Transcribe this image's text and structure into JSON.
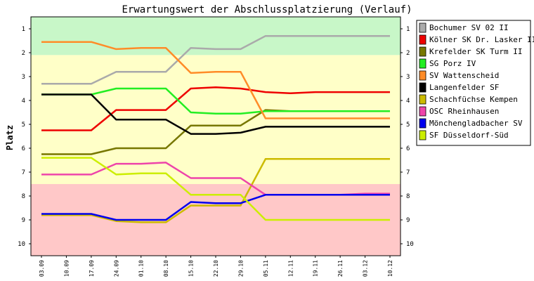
{
  "chart_data": {
    "type": "line",
    "title": "Erwartungswert der Abschlussplatzierung (Verlauf)",
    "xlabel": "",
    "ylabel": "Platz",
    "ylim": [
      10.5,
      0.5
    ],
    "y_ticks": [
      1,
      2,
      3,
      4,
      5,
      6,
      7,
      8,
      9,
      10
    ],
    "categories": [
      "03.09",
      "10.09",
      "17.09",
      "24.09",
      "01.10",
      "08.10",
      "15.10",
      "22.10",
      "29.10",
      "05.11",
      "12.11",
      "19.11",
      "26.11",
      "03.12",
      "10.12"
    ],
    "zones": [
      {
        "from": 0.5,
        "to": 2.1,
        "color": "#c8f7c8"
      },
      {
        "from": 2.1,
        "to": 7.5,
        "color": "#ffffc8"
      },
      {
        "from": 7.5,
        "to": 10.5,
        "color": "#ffc8c8"
      }
    ],
    "legend_position": "right",
    "series": [
      {
        "name": "Bochumer SV 02 II",
        "color": "#aaaaaa",
        "values": [
          3.3,
          3.3,
          3.3,
          2.8,
          2.8,
          2.8,
          1.8,
          1.85,
          1.85,
          1.3,
          1.3,
          1.3,
          1.3,
          1.3,
          1.3
        ]
      },
      {
        "name": "Kölner SK Dr. Lasker II",
        "color": "#ee0000",
        "values": [
          5.25,
          5.25,
          5.25,
          4.4,
          4.4,
          4.4,
          3.5,
          3.45,
          3.5,
          3.65,
          3.7,
          3.65,
          3.65,
          3.65,
          3.65
        ]
      },
      {
        "name": "Krefelder SK Turm II",
        "color": "#777700",
        "values": [
          6.25,
          6.25,
          6.25,
          6.0,
          6.0,
          6.0,
          5.05,
          5.05,
          5.05,
          4.4,
          4.45,
          4.45,
          4.45,
          4.45,
          4.45
        ]
      },
      {
        "name": "SG Porz IV",
        "color": "#22ee22",
        "values": [
          3.75,
          3.75,
          3.75,
          3.5,
          3.5,
          3.5,
          4.5,
          4.55,
          4.55,
          4.45,
          4.45,
          4.45,
          4.45,
          4.45,
          4.45
        ]
      },
      {
        "name": "SV Wattenscheid",
        "color": "#ff8c28",
        "values": [
          1.55,
          1.55,
          1.55,
          1.85,
          1.8,
          1.8,
          2.85,
          2.8,
          2.8,
          4.75,
          4.75,
          4.75,
          4.75,
          4.75,
          4.75
        ]
      },
      {
        "name": "Langenfelder SF",
        "color": "#000000",
        "values": [
          3.75,
          3.75,
          3.75,
          4.8,
          4.8,
          4.8,
          5.4,
          5.4,
          5.35,
          5.1,
          5.1,
          5.1,
          5.1,
          5.1,
          5.1
        ]
      },
      {
        "name": "Schachfüchse Kempen",
        "color": "#ccbb00",
        "values": [
          8.8,
          8.8,
          8.8,
          9.05,
          9.1,
          9.1,
          8.4,
          8.4,
          8.4,
          6.45,
          6.45,
          6.45,
          6.45,
          6.45,
          6.45
        ]
      },
      {
        "name": "OSC Rheinhausen",
        "color": "#ee44aa",
        "values": [
          7.1,
          7.1,
          7.1,
          6.65,
          6.65,
          6.6,
          7.25,
          7.25,
          7.25,
          7.95,
          7.95,
          7.95,
          7.95,
          7.9,
          7.9
        ]
      },
      {
        "name": "Mönchengladbacher SV",
        "color": "#0000ee",
        "values": [
          8.75,
          8.75,
          8.75,
          9.0,
          9.0,
          9.0,
          8.25,
          8.3,
          8.3,
          7.95,
          7.95,
          7.95,
          7.95,
          7.95,
          7.95
        ]
      },
      {
        "name": "SF Düsseldorf-Süd",
        "color": "#ccee00",
        "values": [
          6.4,
          6.4,
          6.4,
          7.1,
          7.05,
          7.05,
          7.95,
          7.95,
          7.95,
          9.0,
          9.0,
          9.0,
          9.0,
          9.0,
          9.0
        ]
      }
    ]
  }
}
